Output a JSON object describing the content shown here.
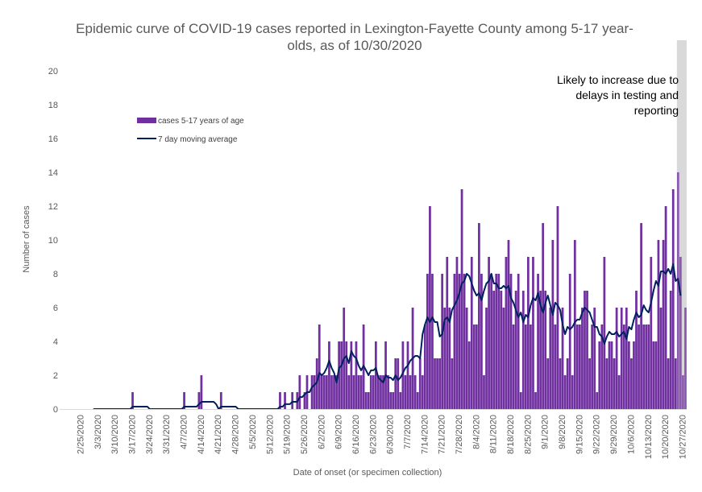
{
  "chart_data": {
    "type": "bar",
    "title_line1": "Epidemic curve of COVID-19 cases reported in Lexington-Fayette County among 5-17 year-",
    "title_line2": "olds, as of 10/30/2020",
    "xlabel": "Date of onset (or specimen collection)",
    "ylabel": "Number of cases",
    "ylim": [
      0,
      20
    ],
    "yticks": [
      0,
      2,
      4,
      6,
      8,
      10,
      12,
      14,
      16,
      18,
      20
    ],
    "xtick_labels": [
      "2/25/2020",
      "3/3/2020",
      "3/10/2020",
      "3/17/2020",
      "3/24/2020",
      "3/31/2020",
      "4/7/2020",
      "4/14/2020",
      "4/21/2020",
      "4/28/2020",
      "5/5/2020",
      "5/12/2020",
      "5/19/2020",
      "5/26/2020",
      "6/2/2020",
      "6/9/2020",
      "6/16/2020",
      "6/23/2020",
      "6/30/2020",
      "7/7/2020",
      "7/14/2020",
      "7/21/2020",
      "7/28/2020",
      "8/4/2020",
      "8/11/2020",
      "8/18/2020",
      "8/25/2020",
      "9/1/2020",
      "9/8/2020",
      "9/15/2020",
      "9/22/2020",
      "9/29/2020",
      "10/6/2020",
      "10/13/2020",
      "10/20/2020",
      "10/27/2020"
    ],
    "first_date": "2/25/2020",
    "grid": false,
    "legend_position": "top-left",
    "colors": {
      "bars": "#7030a0",
      "line": "#002060",
      "shade": "#d9d9d9",
      "axis": "#d9d9d9"
    },
    "shaded_region_days_from_end": 4,
    "annotation": [
      "Likely to increase due to",
      "delays in testing and",
      "reporting"
    ],
    "series": [
      {
        "name": "cases 5-17 years of age",
        "kind": "bar",
        "values": [
          0,
          0,
          0,
          0,
          0,
          0,
          0,
          0,
          0,
          0,
          0,
          0,
          0,
          0,
          0,
          0,
          0,
          0,
          0,
          0,
          0,
          1,
          0,
          0,
          0,
          0,
          0,
          0,
          0,
          0,
          0,
          0,
          0,
          0,
          0,
          0,
          0,
          0,
          0,
          0,
          0,
          0,
          1,
          0,
          0,
          0,
          0,
          0,
          1,
          2,
          0,
          0,
          0,
          0,
          0,
          0,
          0,
          1,
          0,
          0,
          0,
          0,
          0,
          0,
          0,
          0,
          0,
          0,
          0,
          0,
          0,
          0,
          0,
          0,
          0,
          0,
          0,
          0,
          0,
          0,
          0,
          1,
          0,
          1,
          0,
          0,
          1,
          0,
          1,
          2,
          0,
          1,
          2,
          0,
          2,
          2,
          3,
          5,
          2,
          2,
          2,
          4,
          2,
          2,
          2,
          4,
          4,
          6,
          4,
          2,
          4,
          2,
          4,
          2,
          2,
          5,
          1,
          1,
          2,
          2,
          4,
          2,
          2,
          2,
          4,
          2,
          1,
          1,
          3,
          3,
          1,
          4,
          2,
          4,
          2,
          6,
          2,
          1,
          3,
          2,
          5,
          8,
          12,
          8,
          3,
          3,
          3,
          8,
          6,
          9,
          6,
          3,
          8,
          9,
          8,
          13,
          8,
          6,
          4,
          9,
          5,
          5,
          11,
          8,
          2,
          6,
          9,
          8,
          7,
          8,
          8,
          7,
          6,
          9,
          10,
          8,
          5,
          7,
          8,
          1,
          7,
          5,
          9,
          5,
          9,
          1,
          8,
          7,
          11,
          7,
          3,
          6,
          10,
          5,
          12,
          3,
          6,
          2,
          3,
          8,
          2,
          10,
          5,
          5,
          6,
          7,
          7,
          3,
          5,
          6,
          1,
          4,
          5,
          9,
          3,
          4,
          4,
          3,
          6,
          2,
          6,
          5,
          6,
          4,
          3,
          4,
          7,
          5,
          11,
          5,
          5,
          5,
          9,
          4,
          4,
          10,
          6,
          10,
          12,
          3,
          7,
          13,
          3,
          14,
          9,
          2,
          6
        ]
      },
      {
        "name": "7 day moving average",
        "kind": "line",
        "values": [
          0,
          0,
          0,
          0,
          0,
          0,
          0,
          0,
          0,
          0,
          0,
          0,
          0,
          0,
          0,
          0,
          0,
          0,
          0,
          0,
          0,
          0.14,
          0.14,
          0.14,
          0.14,
          0.14,
          0.14,
          0.14,
          0,
          0,
          0,
          0,
          0,
          0,
          0,
          0,
          0,
          0,
          0,
          0,
          0,
          0,
          0.14,
          0.14,
          0.14,
          0.14,
          0.14,
          0.14,
          0.29,
          0.43,
          0.43,
          0.43,
          0.43,
          0.43,
          0.43,
          0.29,
          0,
          0.14,
          0.14,
          0.14,
          0.14,
          0.14,
          0.14,
          0.14,
          0,
          0,
          0,
          0,
          0,
          0,
          0,
          0,
          0,
          0,
          0,
          0,
          0,
          0,
          0,
          0,
          0,
          0.14,
          0.14,
          0.29,
          0.29,
          0.29,
          0.43,
          0.43,
          0.43,
          0.71,
          0.71,
          0.86,
          1.0,
          1.0,
          1.29,
          1.43,
          1.57,
          2.14,
          2.0,
          2.14,
          2.43,
          2.86,
          2.43,
          2.14,
          1.57,
          2.43,
          2.57,
          3.0,
          3.14,
          2.71,
          3.43,
          3.14,
          3.0,
          2.57,
          2.29,
          2.57,
          2.29,
          2.0,
          2.29,
          2.29,
          2.43,
          1.86,
          1.71,
          1.57,
          2.0,
          1.86,
          1.86,
          1.71,
          2.0,
          1.71,
          1.86,
          2.14,
          2.43,
          2.57,
          2.86,
          3.0,
          3.14,
          3.14,
          3.0,
          4.43,
          5.0,
          5.43,
          5.14,
          5.43,
          5.14,
          5.14,
          4.29,
          4.43,
          5.29,
          5.43,
          5.14,
          5.86,
          6.14,
          6.43,
          6.86,
          7.43,
          7.57,
          8.0,
          7.86,
          7.43,
          7.0,
          6.71,
          6.86,
          6.43,
          7.0,
          7.43,
          7.57,
          8.0,
          7.43,
          7.43,
          7.14,
          7.14,
          7.29,
          7.14,
          7.29,
          6.57,
          6.29,
          5.86,
          5.43,
          5.71,
          5.14,
          5.57,
          5.43,
          6.14,
          6.57,
          6.43,
          6.86,
          6.14,
          5.71,
          6.29,
          6.71,
          6.14,
          5.57,
          6.29,
          6.14,
          5.86,
          5.0,
          4.43,
          4.86,
          4.71,
          4.86,
          5.14,
          5.29,
          5.29,
          5.71,
          6.0,
          5.86,
          5.71,
          5.29,
          4.86,
          4.86,
          4.43,
          4.29,
          3.86,
          4.29,
          4.57,
          4.43,
          4.43,
          4.57,
          4.29,
          4.43,
          4.57,
          4.14,
          4.86,
          4.71,
          5.29,
          5.71,
          5.43,
          5.57,
          6.14,
          5.86,
          5.71,
          6.29,
          7.0,
          7.57,
          7.29,
          8.14,
          8.14,
          8.0,
          8.29,
          8.0,
          8.57,
          7.57,
          7.71,
          6.71
        ]
      }
    ]
  }
}
